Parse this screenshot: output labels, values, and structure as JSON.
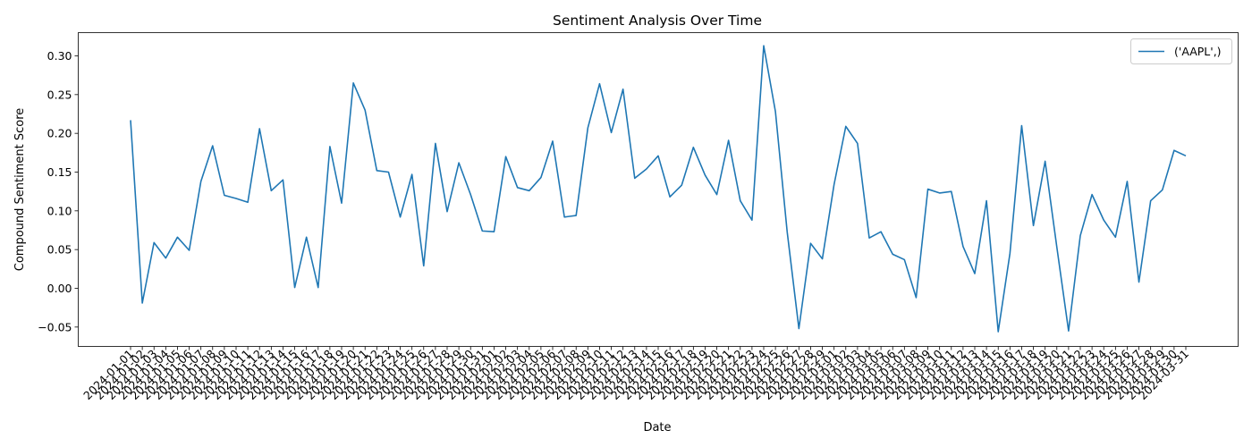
{
  "chart_data": {
    "type": "line",
    "title": "Sentiment Analysis Over Time",
    "xlabel": "Date",
    "ylabel": "Compound Sentiment Score",
    "ylim": [
      -0.075,
      0.33
    ],
    "yticks": [
      -0.05,
      0.0,
      0.05,
      0.1,
      0.15,
      0.2,
      0.25,
      0.3
    ],
    "ytick_labels": [
      "−0.05",
      "0.00",
      "0.05",
      "0.10",
      "0.15",
      "0.20",
      "0.25",
      "0.30"
    ],
    "grid": false,
    "legend_position": "top-right",
    "line_color": "#1f77b4",
    "series": [
      {
        "name": "('AAPL',)",
        "x": [
          "2024-01-01",
          "2024-01-02",
          "2024-01-03",
          "2024-01-04",
          "2024-01-05",
          "2024-01-06",
          "2024-01-07",
          "2024-01-08",
          "2024-01-09",
          "2024-01-10",
          "2024-01-11",
          "2024-01-12",
          "2024-01-13",
          "2024-01-14",
          "2024-01-15",
          "2024-01-16",
          "2024-01-17",
          "2024-01-18",
          "2024-01-19",
          "2024-01-20",
          "2024-01-21",
          "2024-01-22",
          "2024-01-23",
          "2024-01-24",
          "2024-01-25",
          "2024-01-26",
          "2024-01-27",
          "2024-01-28",
          "2024-01-29",
          "2024-01-30",
          "2024-01-31",
          "2024-02-01",
          "2024-02-02",
          "2024-02-03",
          "2024-02-04",
          "2024-02-05",
          "2024-02-06",
          "2024-02-07",
          "2024-02-08",
          "2024-02-09",
          "2024-02-10",
          "2024-02-11",
          "2024-02-12",
          "2024-02-13",
          "2024-02-14",
          "2024-02-15",
          "2024-02-16",
          "2024-02-17",
          "2024-02-18",
          "2024-02-19",
          "2024-02-20",
          "2024-02-21",
          "2024-02-22",
          "2024-02-23",
          "2024-02-24",
          "2024-02-25",
          "2024-02-26",
          "2024-02-27",
          "2024-02-28",
          "2024-02-29",
          "2024-03-01",
          "2024-03-02",
          "2024-03-03",
          "2024-03-04",
          "2024-03-05",
          "2024-03-06",
          "2024-03-07",
          "2024-03-08",
          "2024-03-09",
          "2024-03-10",
          "2024-03-11",
          "2024-03-12",
          "2024-03-13",
          "2024-03-14",
          "2024-03-15",
          "2024-03-16",
          "2024-03-17",
          "2024-03-18",
          "2024-03-19",
          "2024-03-20",
          "2024-03-21",
          "2024-03-22",
          "2024-03-23",
          "2024-03-24",
          "2024-03-25",
          "2024-03-26",
          "2024-03-27",
          "2024-03-28",
          "2024-03-29",
          "2024-03-30",
          "2024-03-31"
        ],
        "values": [
          0.217,
          -0.019,
          0.059,
          0.039,
          0.066,
          0.049,
          0.138,
          0.184,
          0.12,
          0.116,
          0.111,
          0.206,
          0.126,
          0.14,
          0.001,
          0.066,
          0.001,
          0.183,
          0.11,
          0.265,
          0.23,
          0.152,
          0.15,
          0.092,
          0.147,
          0.029,
          0.187,
          0.099,
          0.162,
          0.121,
          0.074,
          0.073,
          0.17,
          0.13,
          0.126,
          0.143,
          0.19,
          0.092,
          0.094,
          0.207,
          0.264,
          0.201,
          0.257,
          0.142,
          0.154,
          0.171,
          0.118,
          0.133,
          0.182,
          0.146,
          0.121,
          0.191,
          0.113,
          0.088,
          0.313,
          0.228,
          0.073,
          -0.052,
          0.058,
          0.038,
          0.134,
          0.209,
          0.187,
          0.065,
          0.073,
          0.044,
          0.037,
          -0.012,
          0.128,
          0.123,
          0.125,
          0.054,
          0.019,
          0.113,
          -0.056,
          0.045,
          0.21,
          0.081,
          0.164,
          0.053,
          -0.055,
          0.068,
          0.121,
          0.088,
          0.066,
          0.138,
          0.008,
          0.113,
          0.127,
          0.178,
          0.171
        ]
      }
    ]
  }
}
